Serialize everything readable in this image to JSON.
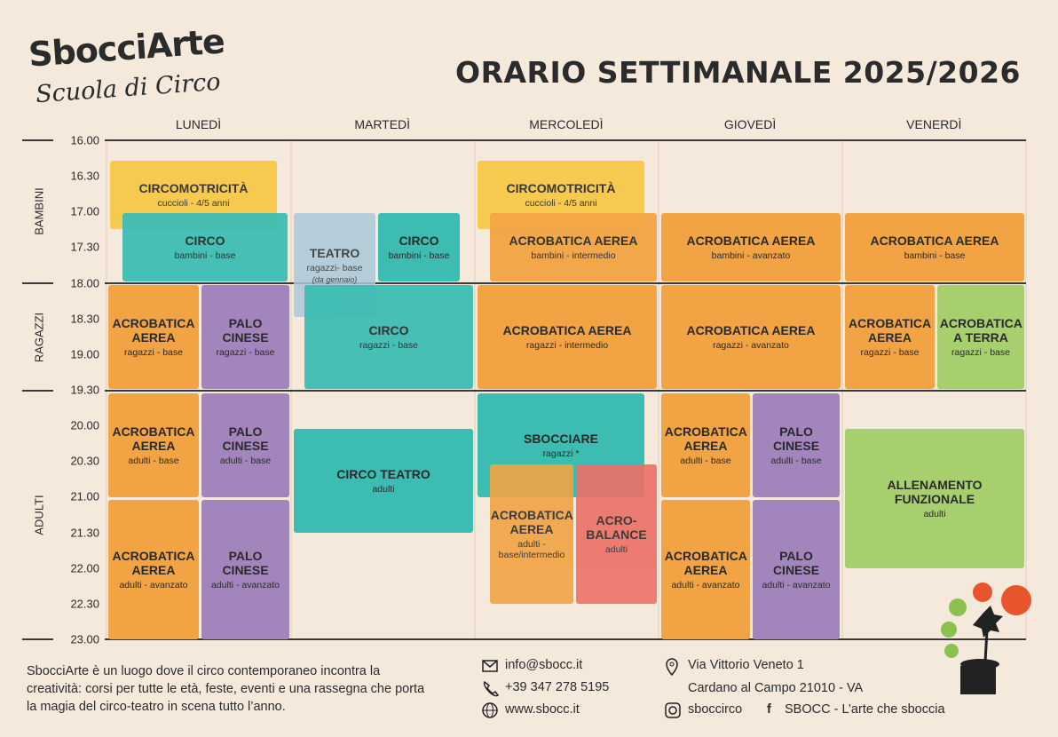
{
  "header": {
    "logo": "SbocciArte",
    "logo_subtitle": "Scuola di Circo",
    "title": "ORARIO SETTIMANALE 2025/2026"
  },
  "days": [
    "LUNEDÌ",
    "MARTEDÌ",
    "MERCOLEDÌ",
    "GIOVEDÌ",
    "VENERDÌ"
  ],
  "times": [
    "16.00",
    "16.30",
    "17.00",
    "17.30",
    "18.00",
    "18.30",
    "19.00",
    "19.30",
    "20.00",
    "20.30",
    "21.00",
    "21.30",
    "22.00",
    "22.30",
    "23.00"
  ],
  "sections": [
    "BAMBINI",
    "RAGAZZI",
    "ADULTI"
  ],
  "classes": [
    {
      "title": "CIRCOMOTRICITÀ",
      "detail": "cuccioli - 4/5 anni"
    },
    {
      "title": "CIRCO",
      "detail": "bambini - base"
    },
    {
      "title": "ACROBATICA AEREA",
      "detail": "ragazzi - base"
    },
    {
      "title": "PALO CINESE",
      "detail": "ragazzi - base"
    },
    {
      "title": "ACROBATICA AEREA",
      "detail": "adulti - base"
    },
    {
      "title": "PALO CINESE",
      "detail": "adulti - base"
    },
    {
      "title": "ACROBATICA AEREA",
      "detail": "adulti - avanzato"
    },
    {
      "title": "PALO CINESE",
      "detail": "adulti - avanzato"
    },
    {
      "title": "TEATRO",
      "detail": "ragazzi- base",
      "note": "(da gennaio)"
    },
    {
      "title": "CIRCO",
      "detail": "bambini - base"
    },
    {
      "title": "CIRCO",
      "detail": "ragazzi - base"
    },
    {
      "title": "CIRCO TEATRO",
      "detail": "adulti"
    },
    {
      "title": "CIRCOMOTRICITÀ",
      "detail": "cuccioli - 4/5 anni"
    },
    {
      "title": "ACROBATICA AEREA",
      "detail": "bambini - intermedio"
    },
    {
      "title": "ACROBATICA AEREA",
      "detail": "ragazzi - intermedio"
    },
    {
      "title": "SBOCCIARE",
      "detail": "ragazzi *"
    },
    {
      "title": "ACROBATICA AEREA",
      "detail": "adulti - base/intermedio"
    },
    {
      "title": "ACRO-BALANCE",
      "detail": "adulti"
    },
    {
      "title": "ACROBATICA AEREA",
      "detail": "bambini - avanzato"
    },
    {
      "title": "ACROBATICA AEREA",
      "detail": "ragazzi - avanzato"
    },
    {
      "title": "ACROBATICA AEREA",
      "detail": "adulti - base"
    },
    {
      "title": "PALO CINESE",
      "detail": "adulti - base"
    },
    {
      "title": "ACROBATICA AEREA",
      "detail": "adulti - avanzato"
    },
    {
      "title": "PALO CINESE",
      "detail": "adulti - avanzato"
    },
    {
      "title": "ACROBATICA AEREA",
      "detail": "bambini - base"
    },
    {
      "title": "ACROBATICA AEREA",
      "detail": "ragazzi - base"
    },
    {
      "title": "ACROBATICA A TERRA",
      "detail": "ragazzi - base"
    },
    {
      "title": "ALLENAMENTO FUNZIONALE",
      "detail": "adulti"
    }
  ],
  "footer": {
    "description": "SbocciArte è un luogo dove il circo contemporaneo incontra la creatività: corsi per tutte le età, feste, eventi e una rassegna che porta la magia del circo-teatro in scena tutto l’anno.",
    "email": "info@sbocc.it",
    "phone": "+39 347 278 5195",
    "website": "www.sbocc.it",
    "address_line1": "Via Vittorio Veneto 1",
    "address_line2": "Cardano al Campo 21010 - VA",
    "instagram": "sboccirco",
    "facebook": "SBOCC - L’arte che sboccia"
  }
}
